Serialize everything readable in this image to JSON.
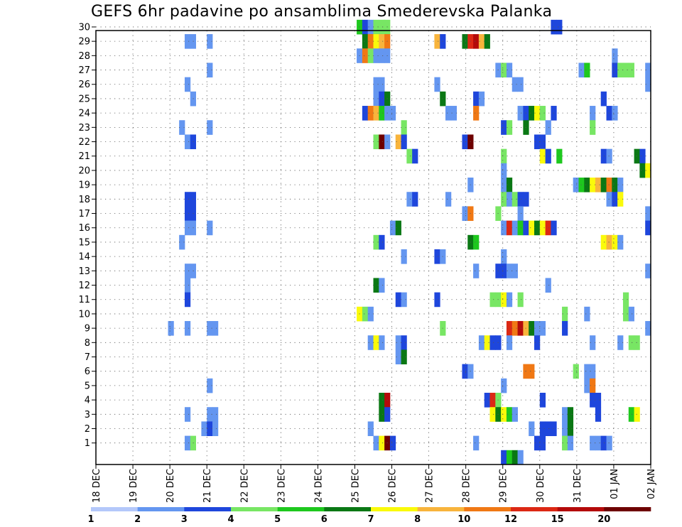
{
  "chart_data": {
    "type": "heatmap",
    "title": "GEFS 6hr padavine po ansamblima Smederevska Palanka",
    "xlabel": "",
    "ylabel": "",
    "x_ticks": [
      "18 DEC",
      "19 DEC",
      "20 DEC",
      "21 DEC",
      "22 DEC",
      "23 DEC",
      "24 DEC",
      "25 DEC",
      "26 DEC",
      "27 DEC",
      "28 DEC",
      "29 DEC",
      "30 DEC",
      "31 DEC",
      "01 JAN",
      "02 JAN"
    ],
    "x_step": "6hr",
    "y_ticks": [
      1,
      2,
      3,
      4,
      5,
      6,
      7,
      8,
      9,
      10,
      11,
      12,
      13,
      14,
      15,
      16,
      17,
      18,
      19,
      20,
      21,
      22,
      23,
      24,
      25,
      26,
      27,
      28,
      29,
      30
    ],
    "ylim": [
      0,
      30
    ],
    "grid": true,
    "colorbar": {
      "labels": [
        "1",
        "2",
        "3",
        "4",
        "5",
        "6",
        "7",
        "8",
        "10",
        "12",
        "15",
        "20"
      ],
      "colors": [
        "#b4c8fa",
        "#6496f0",
        "#1e46dc",
        "#78e664",
        "#1ec81e",
        "#0a7814",
        "#fafa0a",
        "#f8b43c",
        "#f07814",
        "#dc2814",
        "#b40a0a",
        "#6e0000"
      ]
    },
    "cells": [
      [
        30,
        47,
        4
      ],
      [
        30,
        48,
        2
      ],
      [
        30,
        49,
        1
      ],
      [
        30,
        50,
        3
      ],
      [
        30,
        51,
        3
      ],
      [
        30,
        52,
        3
      ],
      [
        30,
        82,
        2
      ],
      [
        30,
        83,
        2
      ],
      [
        29,
        16,
        1
      ],
      [
        29,
        17,
        1
      ],
      [
        29,
        20,
        1
      ],
      [
        29,
        48,
        5
      ],
      [
        29,
        49,
        8
      ],
      [
        29,
        50,
        6
      ],
      [
        29,
        51,
        7
      ],
      [
        29,
        52,
        8
      ],
      [
        29,
        61,
        7
      ],
      [
        29,
        62,
        2
      ],
      [
        29,
        66,
        5
      ],
      [
        29,
        67,
        9
      ],
      [
        29,
        68,
        10
      ],
      [
        29,
        69,
        7
      ],
      [
        29,
        70,
        5
      ],
      [
        28,
        47,
        1
      ],
      [
        28,
        48,
        8
      ],
      [
        28,
        49,
        3
      ],
      [
        28,
        50,
        1
      ],
      [
        28,
        51,
        1
      ],
      [
        28,
        52,
        1
      ],
      [
        28,
        93,
        1
      ],
      [
        27,
        20,
        1
      ],
      [
        27,
        72,
        1
      ],
      [
        27,
        73,
        3
      ],
      [
        27,
        74,
        1
      ],
      [
        27,
        87,
        1
      ],
      [
        27,
        88,
        4
      ],
      [
        27,
        93,
        2
      ],
      [
        27,
        94,
        3
      ],
      [
        27,
        95,
        3
      ],
      [
        27,
        96,
        3
      ],
      [
        27,
        99,
        1
      ],
      [
        26,
        16,
        1
      ],
      [
        26,
        50,
        1
      ],
      [
        26,
        51,
        1
      ],
      [
        26,
        61,
        1
      ],
      [
        26,
        75,
        1
      ],
      [
        26,
        76,
        1
      ],
      [
        26,
        99,
        1
      ],
      [
        25,
        17,
        1
      ],
      [
        25,
        50,
        1
      ],
      [
        25,
        51,
        2
      ],
      [
        25,
        52,
        5
      ],
      [
        25,
        62,
        5
      ],
      [
        25,
        68,
        2
      ],
      [
        25,
        69,
        1
      ],
      [
        25,
        91,
        2
      ],
      [
        24,
        48,
        2
      ],
      [
        24,
        49,
        8
      ],
      [
        24,
        50,
        7
      ],
      [
        24,
        51,
        4
      ],
      [
        24,
        52,
        1
      ],
      [
        24,
        53,
        1
      ],
      [
        24,
        63,
        1
      ],
      [
        24,
        64,
        1
      ],
      [
        24,
        68,
        8
      ],
      [
        24,
        76,
        1
      ],
      [
        24,
        77,
        2
      ],
      [
        24,
        78,
        5
      ],
      [
        24,
        79,
        6
      ],
      [
        24,
        80,
        3
      ],
      [
        24,
        82,
        2
      ],
      [
        24,
        89,
        1
      ],
      [
        24,
        92,
        2
      ],
      [
        24,
        93,
        1
      ],
      [
        23,
        15,
        1
      ],
      [
        23,
        20,
        1
      ],
      [
        23,
        55,
        3
      ],
      [
        23,
        73,
        2
      ],
      [
        23,
        74,
        3
      ],
      [
        23,
        77,
        5
      ],
      [
        23,
        81,
        1
      ],
      [
        23,
        89,
        3
      ],
      [
        22,
        16,
        1
      ],
      [
        22,
        17,
        2
      ],
      [
        22,
        50,
        3
      ],
      [
        22,
        51,
        11
      ],
      [
        22,
        52,
        1
      ],
      [
        22,
        54,
        7
      ],
      [
        22,
        55,
        2
      ],
      [
        22,
        66,
        2
      ],
      [
        22,
        67,
        11
      ],
      [
        22,
        79,
        2
      ],
      [
        22,
        80,
        2
      ],
      [
        21,
        56,
        3
      ],
      [
        21,
        57,
        2
      ],
      [
        21,
        73,
        3
      ],
      [
        21,
        80,
        6
      ],
      [
        21,
        81,
        2
      ],
      [
        21,
        83,
        4
      ],
      [
        21,
        91,
        2
      ],
      [
        21,
        92,
        1
      ],
      [
        21,
        97,
        5
      ],
      [
        21,
        98,
        2
      ],
      [
        20,
        73,
        1
      ],
      [
        20,
        98,
        5
      ],
      [
        20,
        99,
        6
      ],
      [
        19,
        67,
        1
      ],
      [
        19,
        73,
        1
      ],
      [
        19,
        74,
        5
      ],
      [
        19,
        86,
        1
      ],
      [
        19,
        87,
        4
      ],
      [
        19,
        88,
        5
      ],
      [
        19,
        89,
        6
      ],
      [
        19,
        90,
        7
      ],
      [
        19,
        91,
        5
      ],
      [
        19,
        92,
        8
      ],
      [
        19,
        93,
        5
      ],
      [
        19,
        94,
        1
      ],
      [
        18,
        16,
        2
      ],
      [
        18,
        17,
        2
      ],
      [
        18,
        56,
        1
      ],
      [
        18,
        57,
        2
      ],
      [
        18,
        63,
        1
      ],
      [
        18,
        73,
        3
      ],
      [
        18,
        74,
        1
      ],
      [
        18,
        75,
        3
      ],
      [
        18,
        76,
        2
      ],
      [
        18,
        77,
        2
      ],
      [
        18,
        92,
        1
      ],
      [
        18,
        93,
        2
      ],
      [
        18,
        94,
        6
      ],
      [
        17,
        16,
        2
      ],
      [
        17,
        17,
        2
      ],
      [
        17,
        66,
        1
      ],
      [
        17,
        67,
        8
      ],
      [
        17,
        72,
        3
      ],
      [
        17,
        76,
        1
      ],
      [
        17,
        99,
        1
      ],
      [
        16,
        16,
        1
      ],
      [
        16,
        17,
        1
      ],
      [
        16,
        20,
        1
      ],
      [
        16,
        53,
        1
      ],
      [
        16,
        54,
        5
      ],
      [
        16,
        73,
        1
      ],
      [
        16,
        74,
        9
      ],
      [
        16,
        75,
        1
      ],
      [
        16,
        76,
        4
      ],
      [
        16,
        77,
        2
      ],
      [
        16,
        78,
        6
      ],
      [
        16,
        79,
        5
      ],
      [
        16,
        80,
        6
      ],
      [
        16,
        81,
        9
      ],
      [
        16,
        82,
        2
      ],
      [
        16,
        99,
        2
      ],
      [
        15,
        15,
        1
      ],
      [
        15,
        50,
        3
      ],
      [
        15,
        51,
        2
      ],
      [
        15,
        67,
        5
      ],
      [
        15,
        68,
        4
      ],
      [
        15,
        91,
        6
      ],
      [
        15,
        92,
        7
      ],
      [
        15,
        93,
        6
      ],
      [
        15,
        94,
        1
      ],
      [
        14,
        55,
        1
      ],
      [
        14,
        61,
        2
      ],
      [
        14,
        62,
        1
      ],
      [
        14,
        73,
        1
      ],
      [
        13,
        16,
        1
      ],
      [
        13,
        17,
        1
      ],
      [
        13,
        68,
        1
      ],
      [
        13,
        72,
        2
      ],
      [
        13,
        73,
        2
      ],
      [
        13,
        74,
        1
      ],
      [
        13,
        75,
        1
      ],
      [
        13,
        99,
        1
      ],
      [
        12,
        16,
        1
      ],
      [
        12,
        50,
        5
      ],
      [
        12,
        51,
        1
      ],
      [
        12,
        81,
        1
      ],
      [
        11,
        16,
        2
      ],
      [
        11,
        54,
        2
      ],
      [
        11,
        55,
        1
      ],
      [
        11,
        61,
        2
      ],
      [
        11,
        71,
        3
      ],
      [
        11,
        72,
        3
      ],
      [
        11,
        73,
        6
      ],
      [
        11,
        74,
        1
      ],
      [
        11,
        76,
        3
      ],
      [
        11,
        95,
        3
      ],
      [
        10,
        47,
        6
      ],
      [
        10,
        48,
        3
      ],
      [
        10,
        49,
        1
      ],
      [
        10,
        84,
        3
      ],
      [
        10,
        88,
        1
      ],
      [
        10,
        95,
        3
      ],
      [
        10,
        96,
        1
      ],
      [
        9,
        13,
        1
      ],
      [
        9,
        16,
        1
      ],
      [
        9,
        20,
        1
      ],
      [
        9,
        21,
        1
      ],
      [
        9,
        62,
        3
      ],
      [
        9,
        74,
        9
      ],
      [
        9,
        75,
        8
      ],
      [
        9,
        76,
        10
      ],
      [
        9,
        77,
        7
      ],
      [
        9,
        78,
        5
      ],
      [
        9,
        79,
        1
      ],
      [
        9,
        80,
        1
      ],
      [
        9,
        84,
        2
      ],
      [
        9,
        99,
        1
      ],
      [
        8,
        49,
        1
      ],
      [
        8,
        50,
        6
      ],
      [
        8,
        51,
        1
      ],
      [
        8,
        54,
        1
      ],
      [
        8,
        55,
        2
      ],
      [
        8,
        69,
        1
      ],
      [
        8,
        70,
        6
      ],
      [
        8,
        71,
        2
      ],
      [
        8,
        72,
        2
      ],
      [
        8,
        74,
        1
      ],
      [
        8,
        79,
        2
      ],
      [
        8,
        89,
        1
      ],
      [
        8,
        94,
        1
      ],
      [
        8,
        96,
        3
      ],
      [
        8,
        97,
        3
      ],
      [
        7,
        54,
        1
      ],
      [
        7,
        55,
        5
      ],
      [
        6,
        66,
        2
      ],
      [
        6,
        67,
        1
      ],
      [
        6,
        77,
        8
      ],
      [
        6,
        78,
        8
      ],
      [
        6,
        86,
        3
      ],
      [
        6,
        88,
        1
      ],
      [
        6,
        89,
        1
      ],
      [
        5,
        20,
        1
      ],
      [
        5,
        73,
        1
      ],
      [
        5,
        88,
        1
      ],
      [
        5,
        89,
        8
      ],
      [
        4,
        51,
        5
      ],
      [
        4,
        52,
        10
      ],
      [
        4,
        70,
        2
      ],
      [
        4,
        71,
        9
      ],
      [
        4,
        72,
        3
      ],
      [
        4,
        80,
        2
      ],
      [
        4,
        89,
        2
      ],
      [
        4,
        90,
        2
      ],
      [
        3,
        16,
        1
      ],
      [
        3,
        20,
        1
      ],
      [
        3,
        21,
        1
      ],
      [
        3,
        51,
        5
      ],
      [
        3,
        52,
        2
      ],
      [
        3,
        71,
        6
      ],
      [
        3,
        72,
        5
      ],
      [
        3,
        73,
        6
      ],
      [
        3,
        74,
        4
      ],
      [
        3,
        75,
        1
      ],
      [
        3,
        84,
        1
      ],
      [
        3,
        85,
        5
      ],
      [
        3,
        90,
        2
      ],
      [
        3,
        96,
        4
      ],
      [
        3,
        97,
        6
      ],
      [
        2,
        19,
        1
      ],
      [
        2,
        20,
        2
      ],
      [
        2,
        21,
        1
      ],
      [
        2,
        49,
        1
      ],
      [
        2,
        78,
        1
      ],
      [
        2,
        80,
        2
      ],
      [
        2,
        81,
        2
      ],
      [
        2,
        82,
        2
      ],
      [
        2,
        84,
        1
      ],
      [
        2,
        85,
        5
      ],
      [
        1,
        16,
        1
      ],
      [
        1,
        17,
        3
      ],
      [
        1,
        50,
        1
      ],
      [
        1,
        51,
        6
      ],
      [
        1,
        52,
        11
      ],
      [
        1,
        53,
        2
      ],
      [
        1,
        68,
        1
      ],
      [
        1,
        79,
        2
      ],
      [
        1,
        80,
        2
      ],
      [
        1,
        84,
        3
      ],
      [
        1,
        85,
        1
      ],
      [
        1,
        89,
        1
      ],
      [
        1,
        90,
        1
      ],
      [
        1,
        91,
        2
      ],
      [
        1,
        92,
        1
      ],
      [
        0,
        73,
        2
      ],
      [
        0,
        74,
        4
      ],
      [
        0,
        75,
        5
      ],
      [
        0,
        76,
        1
      ]
    ]
  }
}
